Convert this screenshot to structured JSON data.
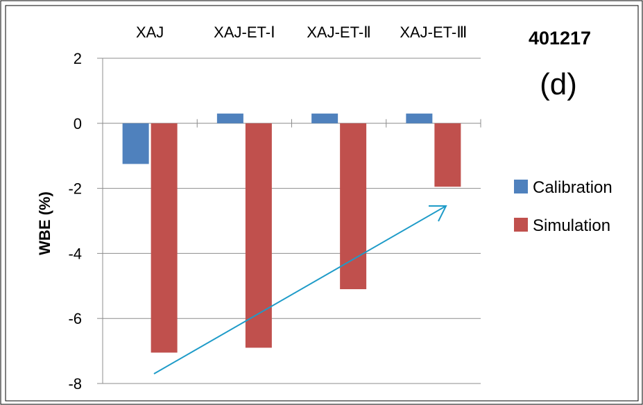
{
  "chart_data": {
    "type": "bar",
    "categories": [
      "XAJ",
      "XAJ-ET-Ⅰ",
      "XAJ-ET-Ⅱ",
      "XAJ-ET-Ⅲ"
    ],
    "series": [
      {
        "name": "Calibration",
        "color": "#4F81BD",
        "values": [
          -1.25,
          0.3,
          0.3,
          0.3
        ]
      },
      {
        "name": "Simulation",
        "color": "#C0504D",
        "values": [
          -7.05,
          -6.9,
          -5.1,
          -1.95
        ]
      }
    ],
    "ylabel": "WBE (%)",
    "xlabel": "",
    "ylim": [
      -8,
      2
    ],
    "yticks": [
      "2",
      "0",
      "-2",
      "-4",
      "-6",
      "-8"
    ],
    "gridlines": true,
    "legend_position": "right",
    "category_labels_position": "top",
    "annotations": {
      "station_id": "401217",
      "panel_label": "(d)",
      "trend_arrow_color": "#1E9BC8"
    }
  }
}
